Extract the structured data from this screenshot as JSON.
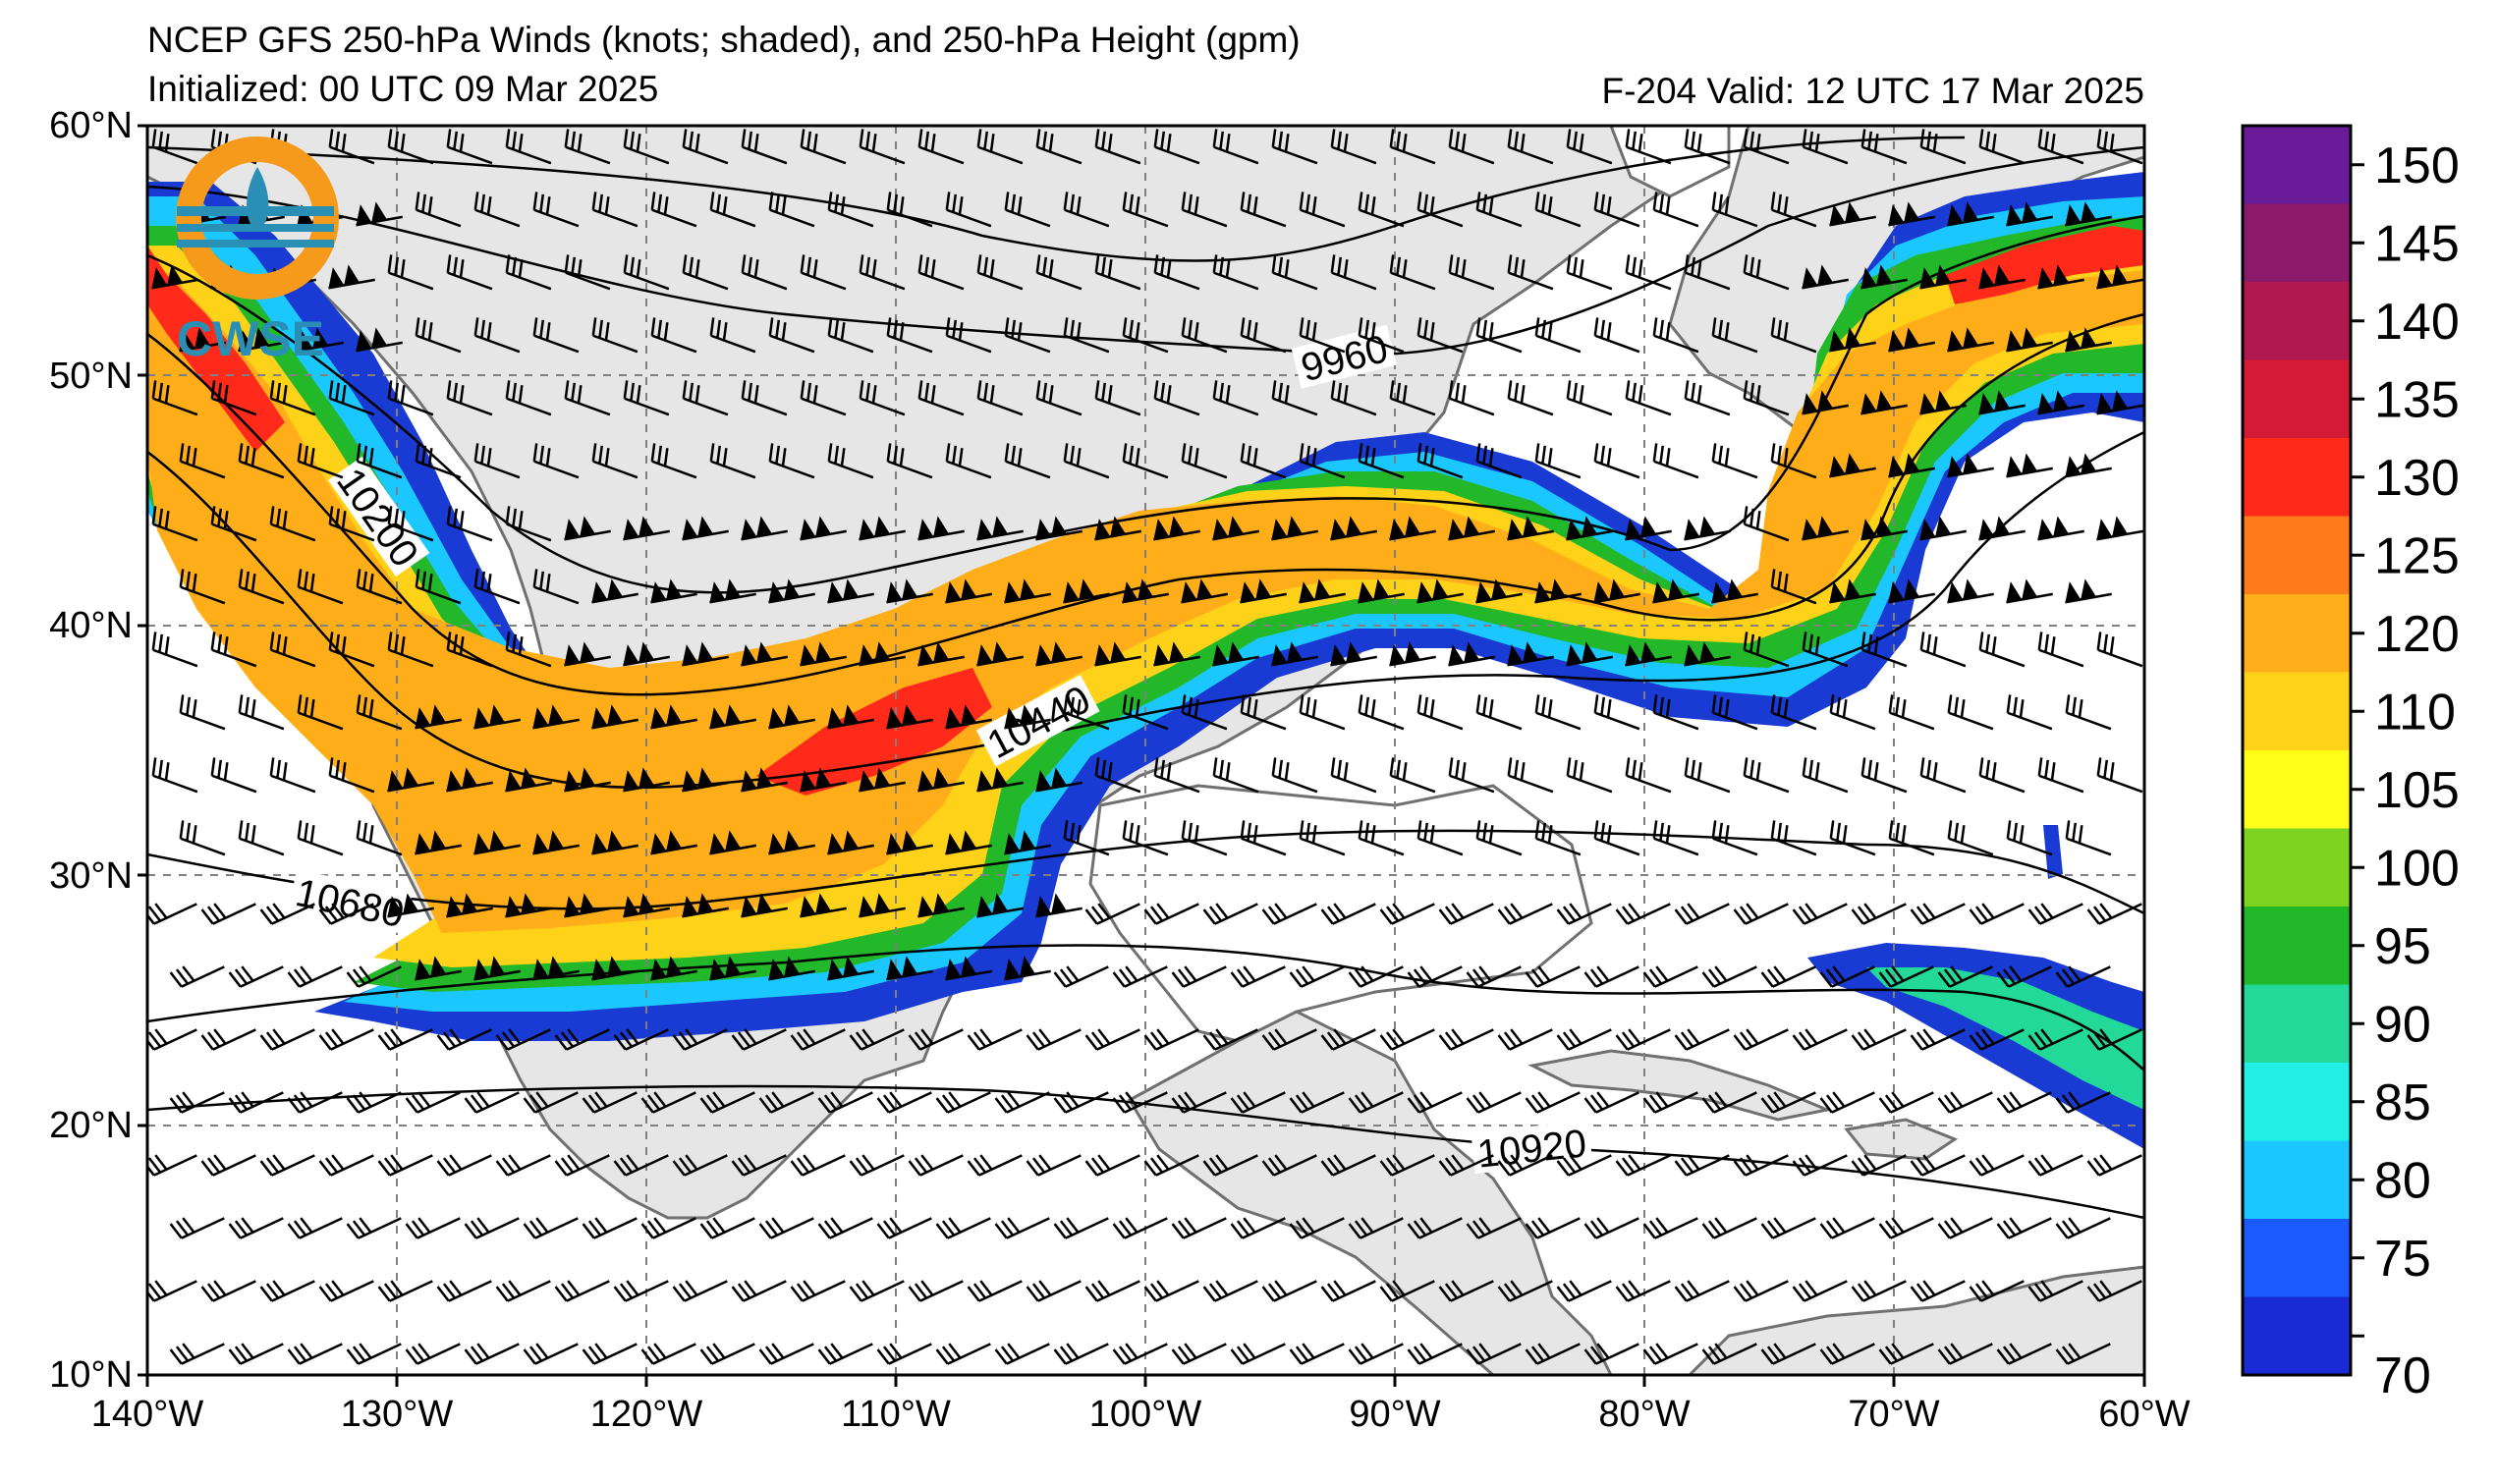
{
  "title": "NCEP GFS 250-hPa Winds (knots; shaded), and 250-hPa Height (gpm)",
  "initialized": "Initialized: 00 UTC 09 Mar 2025",
  "valid": "F-204  Valid: 12 UTC 17 Mar 2025",
  "logo_text": "CWSE",
  "lat_labels": [
    "60°N",
    "50°N",
    "40°N",
    "30°N",
    "20°N",
    "10°N"
  ],
  "lon_labels": [
    "140°W",
    "130°W",
    "120°W",
    "110°W",
    "100°W",
    "90°W",
    "80°W",
    "70°W",
    "60°W"
  ],
  "contour_labels": [
    "9960",
    "10200",
    "10440",
    "10680",
    "10920"
  ],
  "colorbar": {
    "labels": [
      "150",
      "145",
      "140",
      "135",
      "130",
      "125",
      "120",
      "110",
      "105",
      "100",
      "95",
      "90",
      "85",
      "80",
      "75",
      "70"
    ],
    "colors": [
      "#6a1b9a",
      "#8b1a6b",
      "#b0184f",
      "#d41a36",
      "#ff2a1a",
      "#ff7a1a",
      "#ffae1a",
      "#ffd21a",
      "#ffff1a",
      "#7ed321",
      "#22b82a",
      "#22d99a",
      "#22f0e6",
      "#1ac8ff",
      "#1a5aff",
      "#1a2ad4"
    ]
  },
  "colors": {
    "land": "#e6e6e6",
    "ocean": "#ffffff",
    "coast": "#707070",
    "grid": "#808080"
  }
}
